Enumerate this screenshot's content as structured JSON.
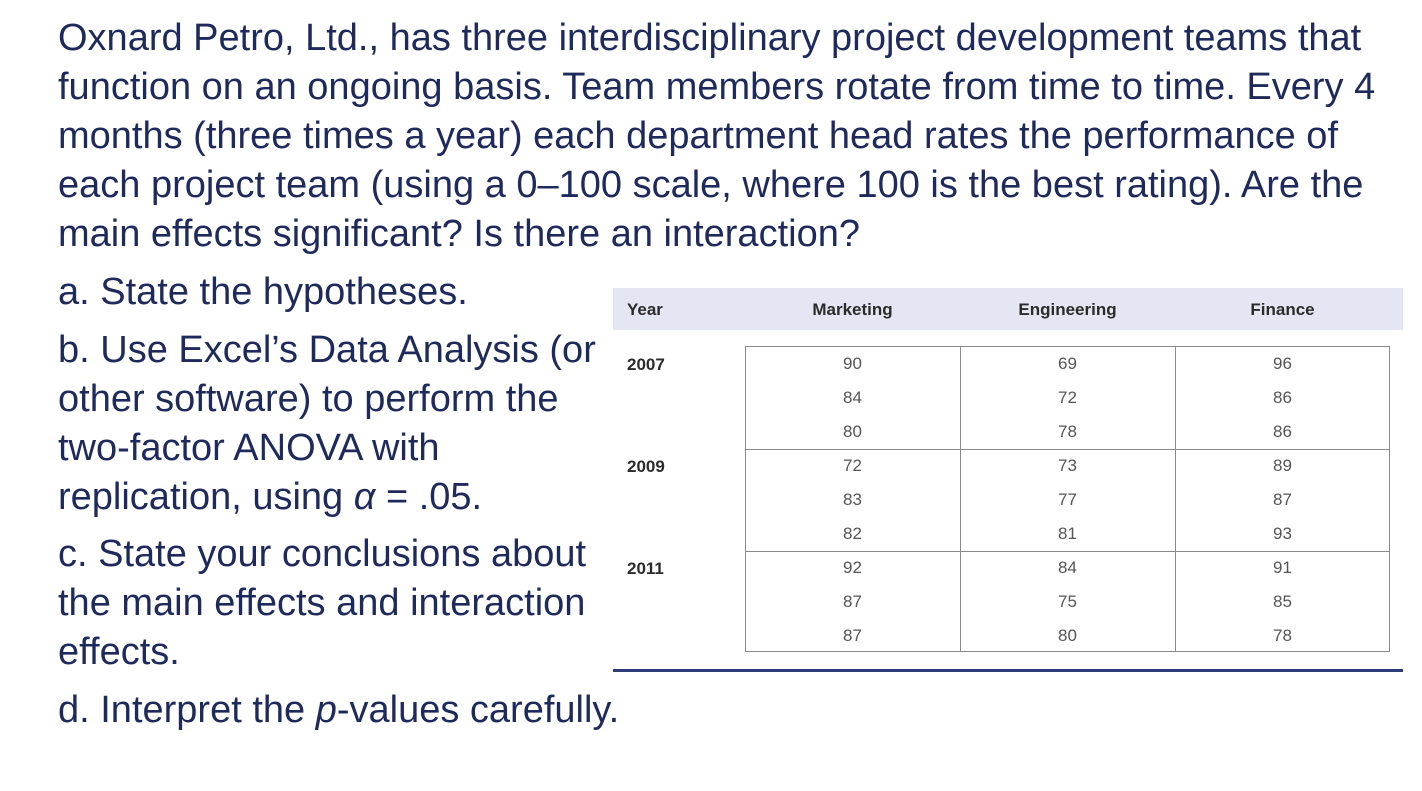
{
  "intro": "Oxnard Petro, Ltd., has three interdisciplinary project development teams that function on an ongoing basis. Team members rotate from time to time. Every 4 months (three times a year) each department head rates the performance of each project team (using a 0–100 scale, where 100 is the best rating). Are the main effects significant? Is there an interaction?",
  "questions": {
    "a": "a. State the hypotheses.",
    "b_pre": "b. Use Excel’s Data Analysis (or other software) to perform the two-factor ANOVA with replication, using ",
    "b_alpha": "α",
    "b_post": " = .05.",
    "c": "c. State your conclusions about the main effects and interaction effects.",
    "d_pre": "d. Interpret the ",
    "d_p": "p",
    "d_post": "-values carefully."
  },
  "table": {
    "headers": [
      "Year",
      "Marketing",
      "Engineering",
      "Finance"
    ],
    "groups": [
      {
        "year": "2007",
        "rows": [
          [
            "90",
            "69",
            "96"
          ],
          [
            "84",
            "72",
            "86"
          ],
          [
            "80",
            "78",
            "86"
          ]
        ]
      },
      {
        "year": "2009",
        "rows": [
          [
            "72",
            "73",
            "89"
          ],
          [
            "83",
            "77",
            "87"
          ],
          [
            "82",
            "81",
            "93"
          ]
        ]
      },
      {
        "year": "2011",
        "rows": [
          [
            "92",
            "84",
            "91"
          ],
          [
            "87",
            "75",
            "85"
          ],
          [
            "87",
            "80",
            "78"
          ]
        ]
      }
    ]
  }
}
